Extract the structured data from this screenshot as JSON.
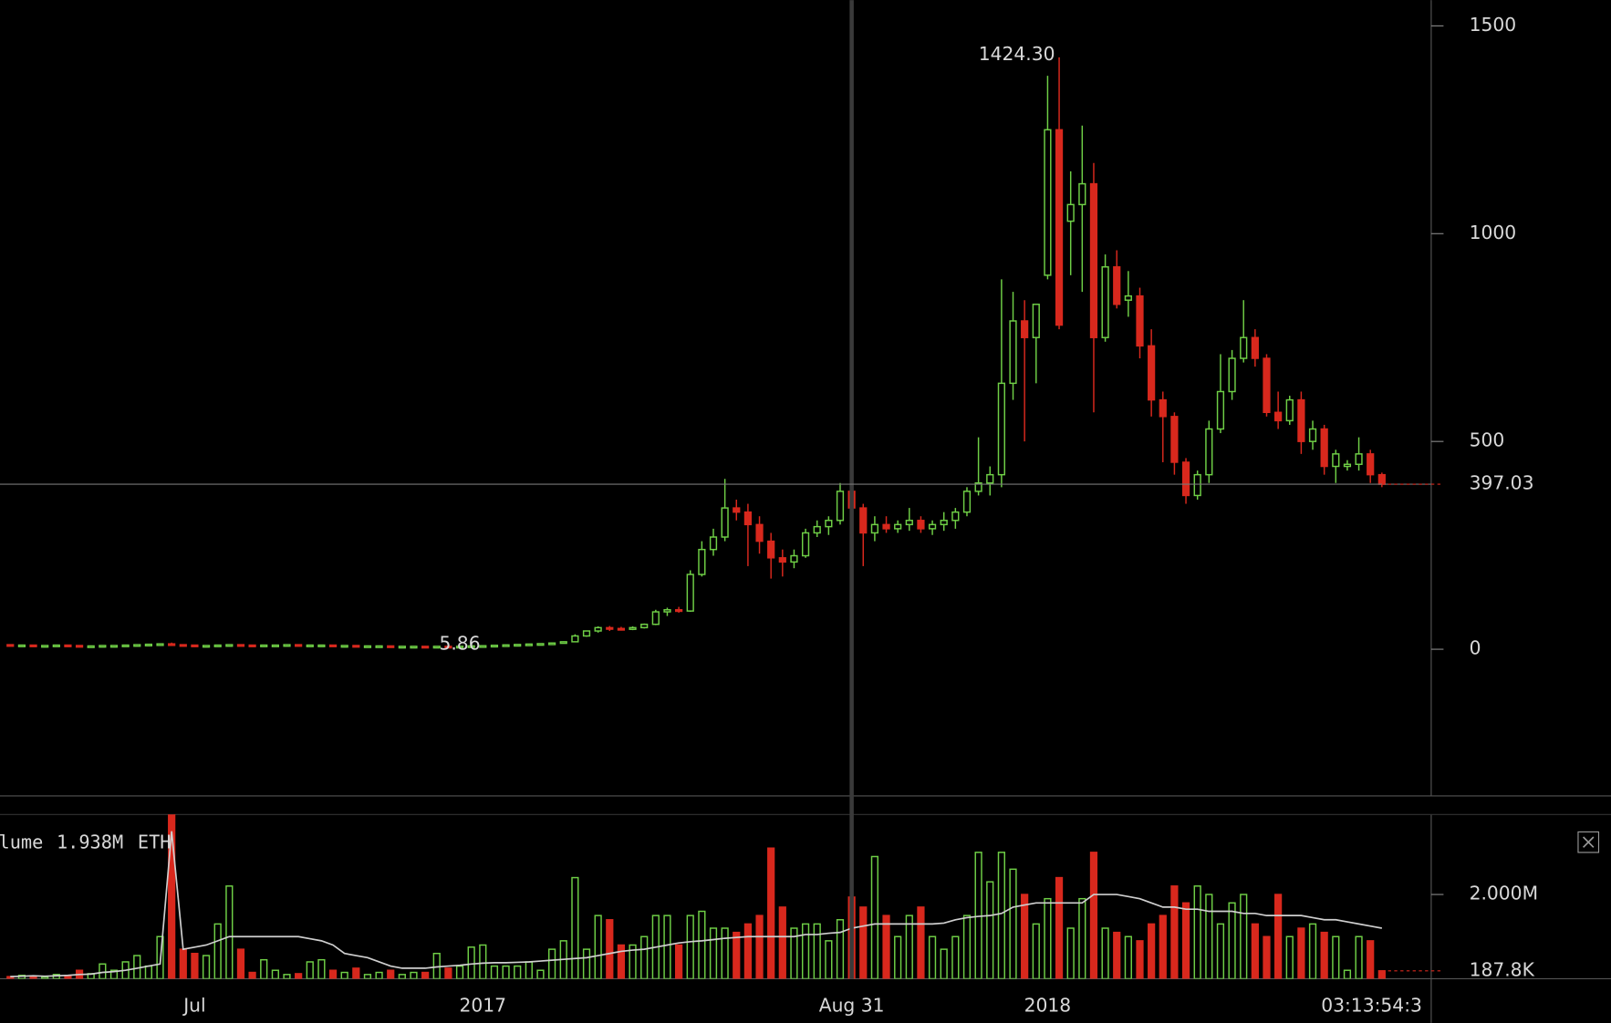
{
  "chart_data": {
    "type": "candlestick",
    "up_color": "#6fcf46",
    "down_color": "#d8281d",
    "ylim": [
      -353,
      1562
    ],
    "yticks": [
      0,
      500,
      1000,
      1500
    ],
    "categories": [
      null,
      null,
      null,
      null,
      null,
      null,
      null,
      null,
      null,
      null,
      null,
      null,
      null,
      null,
      null,
      null,
      "Jul",
      null,
      null,
      null,
      null,
      null,
      null,
      null,
      null,
      null,
      null,
      null,
      null,
      null,
      null,
      null,
      null,
      null,
      null,
      null,
      null,
      null,
      null,
      null,
      null,
      "2017",
      null,
      null,
      null,
      null,
      null,
      null,
      null,
      null,
      null,
      null,
      null,
      null,
      null,
      null,
      null,
      null,
      null,
      null,
      null,
      null,
      null,
      null,
      null,
      null,
      null,
      null,
      null,
      null,
      null,
      null,
      null,
      "Aug 31",
      null,
      null,
      null,
      null,
      null,
      null,
      null,
      null,
      null,
      null,
      null,
      null,
      null,
      null,
      null,
      null,
      "2018",
      null,
      null,
      null,
      null,
      null,
      null,
      null,
      null,
      null,
      null,
      null,
      null,
      null,
      null,
      null,
      null,
      null,
      null,
      null,
      null,
      null,
      null,
      null,
      null,
      null,
      null,
      null,
      null,
      null
    ],
    "countdown": "03:13:54:3",
    "candles": [
      [
        11,
        12,
        10,
        10
      ],
      [
        10,
        11,
        9,
        10
      ],
      [
        10,
        11,
        9,
        9
      ],
      [
        9,
        10,
        8,
        9
      ],
      [
        9,
        11,
        8,
        10
      ],
      [
        10,
        11,
        9,
        9
      ],
      [
        9,
        10,
        7,
        8
      ],
      [
        8,
        9,
        7,
        8
      ],
      [
        8,
        10,
        7,
        9
      ],
      [
        9,
        10,
        8,
        9
      ],
      [
        9,
        11,
        8,
        10
      ],
      [
        10,
        12,
        9,
        11
      ],
      [
        11,
        13,
        10,
        12
      ],
      [
        12,
        14,
        11,
        13
      ],
      [
        13,
        16,
        9,
        11
      ],
      [
        11,
        12,
        9,
        10
      ],
      [
        10,
        11,
        8,
        9
      ],
      [
        9,
        10,
        8,
        9
      ],
      [
        9,
        10,
        8,
        10
      ],
      [
        10,
        12,
        9,
        11
      ],
      [
        11,
        12,
        9,
        10
      ],
      [
        10,
        11,
        8,
        9
      ],
      [
        9,
        11,
        8,
        10
      ],
      [
        10,
        11,
        9,
        10
      ],
      [
        10,
        11,
        9,
        11
      ],
      [
        11,
        12,
        10,
        10
      ],
      [
        10,
        11,
        9,
        10
      ],
      [
        10,
        11,
        9,
        10
      ],
      [
        10,
        11,
        9,
        9
      ],
      [
        9,
        10,
        8,
        9
      ],
      [
        9,
        10,
        8,
        8
      ],
      [
        8,
        9,
        7,
        8
      ],
      [
        8,
        9,
        7,
        8
      ],
      [
        8,
        9,
        7,
        7
      ],
      [
        7,
        8,
        6.5,
        7
      ],
      [
        7,
        8,
        6.5,
        7
      ],
      [
        7,
        8,
        6,
        6.5
      ],
      [
        6.5,
        7.5,
        6,
        7
      ],
      [
        7,
        7.5,
        6,
        6.5
      ],
      [
        6.5,
        7.5,
        5.86,
        7
      ],
      [
        7,
        8,
        6.5,
        8
      ],
      [
        8,
        9,
        7.5,
        8.5
      ],
      [
        8.5,
        10,
        8,
        9.5
      ],
      [
        9.5,
        11,
        9,
        10.5
      ],
      [
        10.5,
        12,
        10,
        11.5
      ],
      [
        11.5,
        13,
        11,
        12.5
      ],
      [
        12.5,
        14,
        12,
        13.5
      ],
      [
        13.5,
        16,
        13,
        15
      ],
      [
        15,
        19,
        14,
        18
      ],
      [
        18,
        36,
        17,
        32
      ],
      [
        32,
        45,
        30,
        44
      ],
      [
        44,
        55,
        40,
        52
      ],
      [
        52,
        56,
        44,
        50
      ],
      [
        50,
        54,
        45,
        48
      ],
      [
        48,
        55,
        46,
        52
      ],
      [
        52,
        62,
        50,
        60
      ],
      [
        60,
        95,
        58,
        90
      ],
      [
        90,
        100,
        80,
        95
      ],
      [
        95,
        102,
        88,
        92
      ],
      [
        92,
        190,
        90,
        180
      ],
      [
        180,
        260,
        175,
        240
      ],
      [
        240,
        290,
        225,
        270
      ],
      [
        270,
        410,
        260,
        340
      ],
      [
        340,
        360,
        310,
        330
      ],
      [
        330,
        350,
        200,
        300
      ],
      [
        300,
        320,
        230,
        260
      ],
      [
        260,
        280,
        170,
        220
      ],
      [
        220,
        240,
        175,
        210
      ],
      [
        210,
        240,
        195,
        225
      ],
      [
        225,
        290,
        220,
        280
      ],
      [
        280,
        310,
        270,
        295
      ],
      [
        295,
        320,
        275,
        310
      ],
      [
        310,
        400,
        300,
        380
      ],
      [
        380,
        400,
        260,
        340
      ],
      [
        340,
        350,
        200,
        280
      ],
      [
        280,
        320,
        260,
        300
      ],
      [
        300,
        320,
        280,
        290
      ],
      [
        290,
        310,
        280,
        300
      ],
      [
        300,
        340,
        285,
        310
      ],
      [
        310,
        320,
        280,
        290
      ],
      [
        290,
        310,
        275,
        300
      ],
      [
        300,
        330,
        285,
        310
      ],
      [
        310,
        340,
        290,
        330
      ],
      [
        330,
        390,
        320,
        380
      ],
      [
        380,
        510,
        370,
        400
      ],
      [
        400,
        440,
        370,
        420
      ],
      [
        420,
        890,
        390,
        640
      ],
      [
        640,
        860,
        600,
        790
      ],
      [
        790,
        840,
        500,
        750
      ],
      [
        750,
        830,
        640,
        830
      ],
      [
        900,
        1380,
        890,
        1250
      ],
      [
        1250,
        1424.3,
        770,
        780
      ],
      [
        1030,
        1150,
        900,
        1070
      ],
      [
        1070,
        1260,
        860,
        1120
      ],
      [
        1120,
        1170,
        570,
        750
      ],
      [
        750,
        950,
        740,
        920
      ],
      [
        920,
        960,
        820,
        830
      ],
      [
        840,
        910,
        800,
        850
      ],
      [
        850,
        870,
        700,
        730
      ],
      [
        730,
        770,
        560,
        600
      ],
      [
        600,
        620,
        450,
        560
      ],
      [
        560,
        570,
        420,
        450
      ],
      [
        450,
        460,
        350,
        370
      ],
      [
        370,
        430,
        360,
        420
      ],
      [
        420,
        550,
        400,
        530
      ],
      [
        530,
        710,
        520,
        620
      ],
      [
        620,
        720,
        600,
        700
      ],
      [
        700,
        840,
        690,
        750
      ],
      [
        750,
        770,
        680,
        700
      ],
      [
        700,
        710,
        560,
        570
      ],
      [
        570,
        620,
        530,
        550
      ],
      [
        550,
        610,
        540,
        600
      ],
      [
        600,
        620,
        470,
        500
      ],
      [
        500,
        550,
        480,
        530
      ],
      [
        530,
        540,
        420,
        440
      ],
      [
        440,
        480,
        400,
        470
      ],
      [
        440,
        455,
        430,
        445
      ],
      [
        445,
        510,
        430,
        470
      ],
      [
        470,
        480,
        400,
        420
      ],
      [
        420,
        425,
        390,
        397.03
      ]
    ],
    "annotations": [
      {
        "value": 1424.3,
        "label": "1424.30"
      },
      {
        "value": 5.86,
        "label": "5.86"
      }
    ],
    "volume_ylim": [
      0,
      3900000
    ],
    "volume_yticks": [
      {
        "value": 2000000,
        "label": "2.000M"
      }
    ],
    "volumes": [
      50000,
      80000,
      60000,
      40000,
      100000,
      70000,
      200000,
      120000,
      350000,
      200000,
      400000,
      550000,
      300000,
      1000000,
      5000000,
      700000,
      600000,
      550000,
      1300000,
      2200000,
      700000,
      150000,
      450000,
      200000,
      100000,
      120000,
      400000,
      450000,
      200000,
      150000,
      250000,
      100000,
      150000,
      200000,
      100000,
      150000,
      150000,
      600000,
      250000,
      300000,
      750000,
      800000,
      300000,
      300000,
      300000,
      400000,
      200000,
      700000,
      900000,
      2400000,
      700000,
      1500000,
      1400000,
      800000,
      800000,
      1000000,
      1500000,
      1500000,
      800000,
      1500000,
      1600000,
      1200000,
      1200000,
      1100000,
      1300000,
      1500000,
      3100000,
      1700000,
      1200000,
      1300000,
      1300000,
      900000,
      1400000,
      1938000,
      1700000,
      2900000,
      1500000,
      1000000,
      1500000,
      1700000,
      1000000,
      700000,
      1000000,
      1500000,
      3000000,
      2300000,
      3000000,
      2600000,
      2000000,
      1300000,
      1900000,
      2400000,
      1200000,
      1900000,
      3000000,
      1200000,
      1100000,
      1000000,
      900000,
      1300000,
      1500000,
      2200000,
      1800000,
      2200000,
      2000000,
      1300000,
      1800000,
      2000000,
      1300000,
      1000000,
      2000000,
      1000000,
      1200000,
      1300000,
      1100000,
      1000000,
      200000,
      1000000,
      900000,
      187800
    ],
    "volume_ma": [
      50000,
      60000,
      70000,
      60000,
      70000,
      80000,
      100000,
      110000,
      150000,
      170000,
      200000,
      250000,
      300000,
      350000,
      3500000,
      700000,
      750000,
      800000,
      900000,
      1000000,
      1000000,
      1000000,
      1000000,
      1000000,
      1000000,
      1000000,
      950000,
      900000,
      800000,
      600000,
      550000,
      500000,
      400000,
      300000,
      250000,
      250000,
      250000,
      280000,
      300000,
      320000,
      350000,
      370000,
      380000,
      380000,
      390000,
      400000,
      420000,
      440000,
      460000,
      480000,
      500000,
      550000,
      600000,
      650000,
      680000,
      700000,
      750000,
      800000,
      850000,
      880000,
      900000,
      930000,
      960000,
      980000,
      1000000,
      1000000,
      1000000,
      1000000,
      1000000,
      1050000,
      1050000,
      1080000,
      1100000,
      1200000,
      1250000,
      1300000,
      1300000,
      1300000,
      1300000,
      1300000,
      1300000,
      1320000,
      1400000,
      1450000,
      1480000,
      1500000,
      1550000,
      1700000,
      1750000,
      1800000,
      1800000,
      1800000,
      1800000,
      1800000,
      2000000,
      2000000,
      2000000,
      1950000,
      1900000,
      1800000,
      1700000,
      1700000,
      1650000,
      1650000,
      1600000,
      1600000,
      1600000,
      1550000,
      1550000,
      1500000,
      1500000,
      1500000,
      1500000,
      1450000,
      1400000,
      1400000,
      1350000,
      1300000,
      1250000,
      1200000
    ],
    "volume_legend": {
      "name": "Volume",
      "value": 1938000,
      "label": "1.938M",
      "unit": "ETH"
    },
    "last_volume": {
      "value": 187800,
      "label": "187.8K"
    }
  }
}
